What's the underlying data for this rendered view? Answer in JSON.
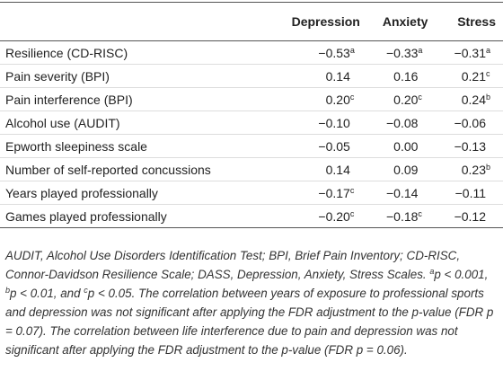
{
  "table": {
    "columns": [
      "Depression",
      "Anxiety",
      "Stress"
    ],
    "rows": [
      {
        "label": "Resilience (CD-RISC)",
        "cells": [
          {
            "text": "−0.53",
            "sup": "a"
          },
          {
            "text": "−0.33",
            "sup": "a"
          },
          {
            "text": "−0.31",
            "sup": "a"
          }
        ]
      },
      {
        "label": "Pain severity (BPI)",
        "cells": [
          {
            "text": "0.14"
          },
          {
            "text": "0.16"
          },
          {
            "text": "0.21",
            "sup": "c"
          }
        ]
      },
      {
        "label": "Pain interference (BPI)",
        "cells": [
          {
            "text": "0.20",
            "sup": "c"
          },
          {
            "text": "0.20",
            "sup": "c"
          },
          {
            "text": "0.24",
            "sup": "b"
          }
        ]
      },
      {
        "label": "Alcohol use (AUDIT)",
        "cells": [
          {
            "text": "−0.10"
          },
          {
            "text": "−0.08"
          },
          {
            "text": "−0.06"
          }
        ]
      },
      {
        "label": "Epworth sleepiness scale",
        "cells": [
          {
            "text": "−0.05"
          },
          {
            "text": "0.00"
          },
          {
            "text": "−0.13"
          }
        ]
      },
      {
        "label": "Number of self-reported concussions",
        "cells": [
          {
            "text": "0.14"
          },
          {
            "text": "0.09"
          },
          {
            "text": "0.23",
            "sup": "b"
          }
        ]
      },
      {
        "label": "Years played professionally",
        "cells": [
          {
            "text": "−0.17",
            "sup": "c"
          },
          {
            "text": "−0.14"
          },
          {
            "text": "−0.11"
          }
        ]
      },
      {
        "label": "Games played professionally",
        "cells": [
          {
            "text": "−0.20",
            "sup": "c"
          },
          {
            "text": "−0.18",
            "sup": "c"
          },
          {
            "text": "−0.12"
          }
        ]
      }
    ]
  },
  "footnote": [
    {
      "text": "AUDIT, Alcohol Use Disorders Identification Test; BPI, Brief Pain Inventory; CD-RISC, Connor-Davidson Resilience Scale; DASS, Depression, Anxiety, Stress Scales. "
    },
    {
      "sup": "a"
    },
    {
      "text": "p < 0.001, "
    },
    {
      "sup": "b"
    },
    {
      "text": "p < 0.01, and "
    },
    {
      "sup": "c"
    },
    {
      "text": "p < 0.05. The correlation between years of exposure to professional sports and depression was not significant after applying the FDR adjustment to the p-value (FDR p = 0.07). The correlation between life interference due to pain and depression was not significant after applying the FDR adjustment to the p-value (FDR p = 0.06)."
    }
  ]
}
